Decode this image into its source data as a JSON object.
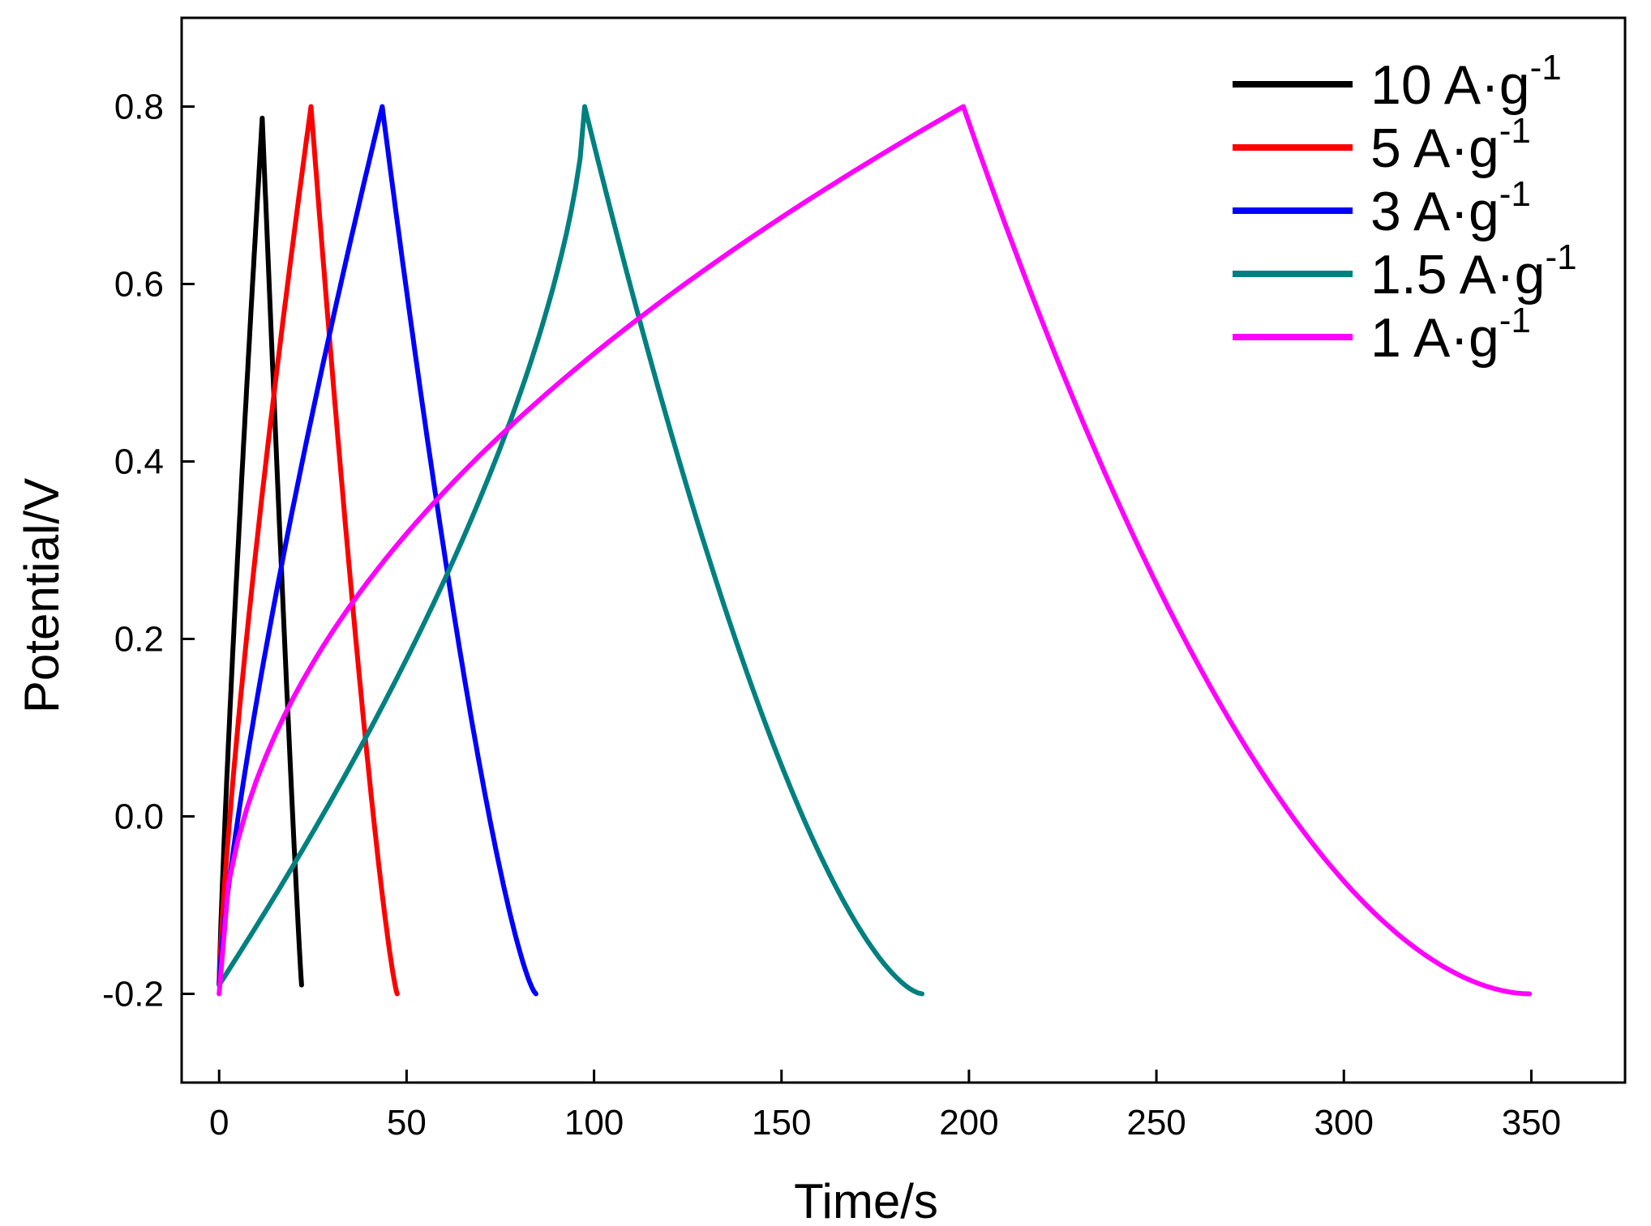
{
  "chart_data": {
    "type": "line",
    "title": "",
    "xlabel": "Time/s",
    "ylabel": "Potential/V",
    "xlim": [
      -10,
      375
    ],
    "ylim": [
      -0.3,
      0.9
    ],
    "xticks": [
      0,
      50,
      100,
      150,
      200,
      250,
      300,
      350
    ],
    "xtick_labels": [
      "0",
      "50",
      "100",
      "150",
      "200",
      "250",
      "300",
      "350"
    ],
    "yticks": [
      -0.2,
      0.0,
      0.2,
      0.4,
      0.6,
      0.8
    ],
    "ytick_labels": [
      "-0.2",
      "0.0",
      "0.2",
      "0.4",
      "0.6",
      "0.8"
    ],
    "grid": false,
    "legend_position": "top-right",
    "series": [
      {
        "name": "10 A·g-1",
        "label_main": "10 A·g",
        "label_sup": "-1",
        "color": "#000000",
        "charge_start": [
          0,
          -0.19
        ],
        "peak": [
          11.5,
          0.787
        ],
        "end": [
          22,
          -0.19
        ],
        "charge_curvature": 0.2,
        "discharge_curvature": 0.1
      },
      {
        "name": "5 A·g-1",
        "label_main": "5 A·g",
        "label_sup": "-1",
        "color": "#ff0000",
        "charge_start": [
          0,
          -0.19
        ],
        "peak": [
          24.5,
          0.8
        ],
        "end": [
          47.5,
          -0.2
        ],
        "charge_curvature": 0.3,
        "discharge_curvature": 0.25
      },
      {
        "name": "3 A·g-1",
        "label_main": "3 A·g",
        "label_sup": "-1",
        "color": "#0000ff",
        "charge_start": [
          0,
          -0.19
        ],
        "peak": [
          43.5,
          0.8
        ],
        "end": [
          84.5,
          -0.2
        ],
        "charge_curvature": 0.3,
        "discharge_curvature": 0.35
      },
      {
        "name": "1.5 A·g-1",
        "label_main": "1.5 A·g",
        "label_sup": "-1",
        "color": "#008080",
        "charge_start": [
          0,
          -0.19
        ],
        "peak": [
          97.5,
          0.8
        ],
        "end": [
          187.5,
          -0.2
        ],
        "charge_curvature": -0.55,
        "discharge_curvature": 0.55
      },
      {
        "name": "1 A·g-1",
        "label_main": "1 A·g",
        "label_sup": "-1",
        "color": "#ff00ff",
        "charge_start": [
          0,
          -0.2
        ],
        "peak": [
          198.5,
          0.8
        ],
        "end": [
          349.5,
          -0.2
        ],
        "charge_curvature": 1.1,
        "discharge_curvature": 0.85
      }
    ]
  }
}
